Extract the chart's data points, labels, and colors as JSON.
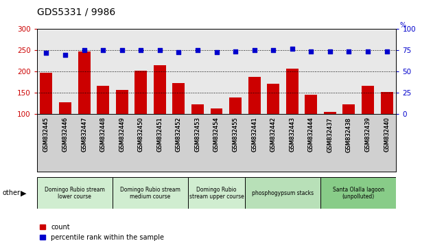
{
  "title": "GDS5331 / 9986",
  "categories": [
    "GSM832445",
    "GSM832446",
    "GSM832447",
    "GSM832448",
    "GSM832449",
    "GSM832450",
    "GSM832451",
    "GSM832452",
    "GSM832453",
    "GSM832454",
    "GSM832455",
    "GSM832441",
    "GSM832442",
    "GSM832443",
    "GSM832444",
    "GSM832437",
    "GSM832438",
    "GSM832439",
    "GSM832440"
  ],
  "counts": [
    197,
    128,
    248,
    167,
    157,
    202,
    216,
    174,
    124,
    114,
    139,
    188,
    171,
    207,
    146,
    106,
    124,
    167,
    153
  ],
  "percentiles": [
    72,
    70,
    75,
    75,
    75,
    75,
    75,
    73,
    75,
    73,
    74,
    75,
    75,
    77,
    74,
    74,
    74,
    74,
    74
  ],
  "bar_color": "#cc0000",
  "dot_color": "#0000cc",
  "ylim_left": [
    100,
    300
  ],
  "ylim_right": [
    0,
    100
  ],
  "yticks_left": [
    100,
    150,
    200,
    250,
    300
  ],
  "yticks_right": [
    0,
    25,
    50,
    75,
    100
  ],
  "groups": [
    {
      "label": "Domingo Rubio stream\nlower course",
      "start": 0,
      "end": 4
    },
    {
      "label": "Domingo Rubio stream\nmedium course",
      "start": 4,
      "end": 8
    },
    {
      "label": "Domingo Rubio\nstream upper course",
      "start": 8,
      "end": 11
    },
    {
      "label": "phosphogypsum stacks",
      "start": 11,
      "end": 15
    },
    {
      "label": "Santa Olalla lagoon\n(unpolluted)",
      "start": 15,
      "end": 19
    }
  ],
  "gc": [
    "#d0edd0",
    "#d0edd0",
    "#d0edd0",
    "#b8e0b8",
    "#88cc88"
  ],
  "other_label": "other",
  "legend_count_label": "count",
  "legend_pct_label": "percentile rank within the sample",
  "tick_bg": "#d0d0d0",
  "plot_bg": "#e8e8e8"
}
